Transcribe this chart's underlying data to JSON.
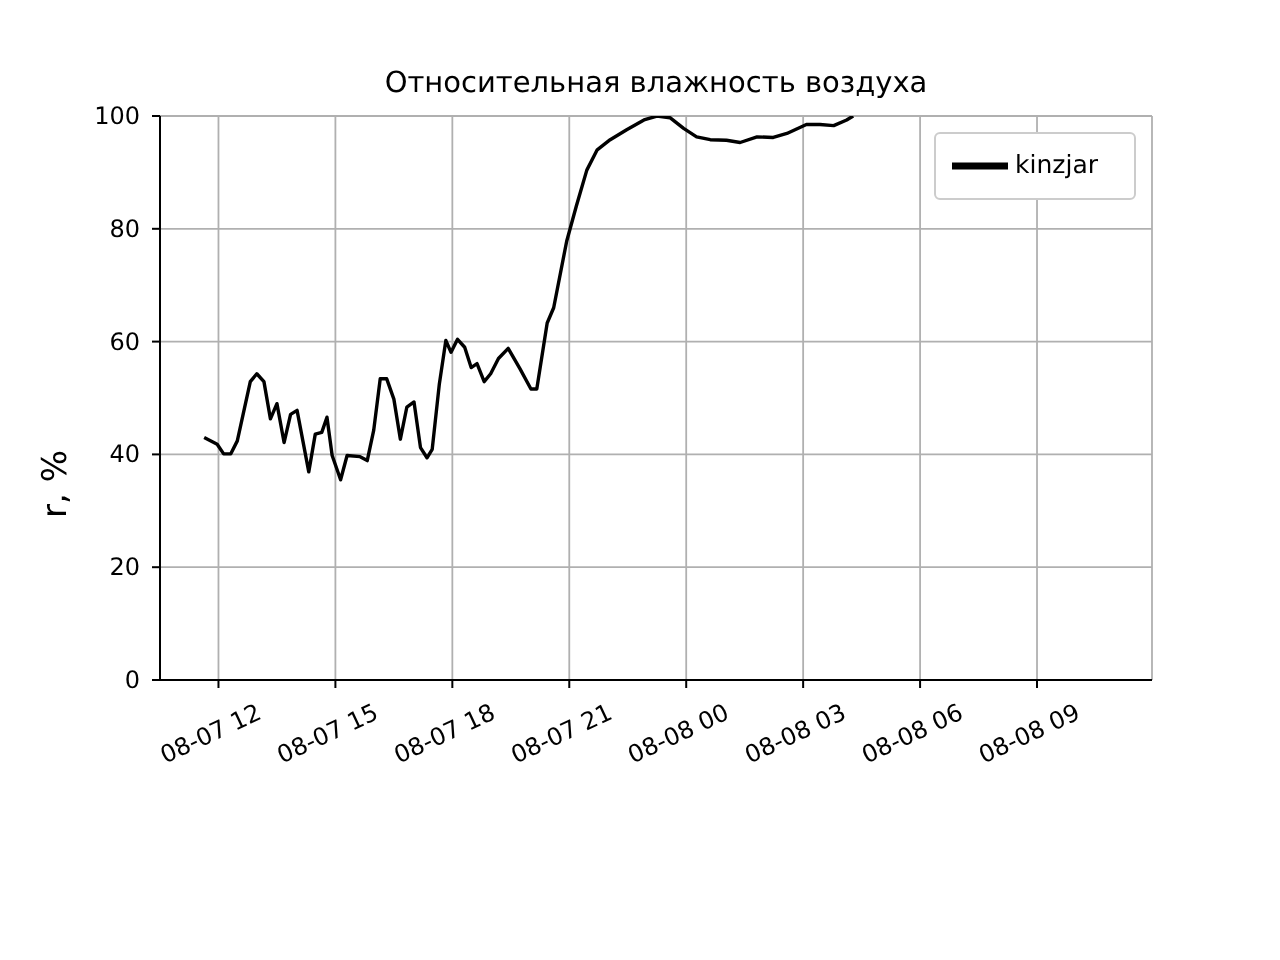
{
  "chart_data": {
    "type": "line",
    "title": "Относительная влажность воздуха",
    "ylabel": "r, %",
    "xlim": [
      "--08-07T10:30",
      "--08-08T11:57"
    ],
    "ylim": [
      0,
      100
    ],
    "xticks": [
      {
        "value": "--08-07T12:00",
        "label": "08-07 12"
      },
      {
        "value": "--08-07T15:00",
        "label": "08-07 15"
      },
      {
        "value": "--08-07T18:00",
        "label": "08-07 18"
      },
      {
        "value": "--08-07T21:00",
        "label": "08-07 21"
      },
      {
        "value": "--08-08T00:00",
        "label": "08-08 00"
      },
      {
        "value": "--08-08T03:00",
        "label": "08-08 03"
      },
      {
        "value": "--08-08T06:00",
        "label": "08-08 06"
      },
      {
        "value": "--08-08T09:00",
        "label": "08-08 09"
      }
    ],
    "yticks": [
      0,
      20,
      40,
      60,
      80,
      100
    ],
    "grid": true,
    "legend": "top right",
    "series": [
      {
        "name": "kinzjar",
        "color": "#000000",
        "x": [
          "--08-07T11:38",
          "--08-07T11:58",
          "--08-07T12:08",
          "--08-07T12:19",
          "--08-07T12:29",
          "--08-07T12:49",
          "--08-07T12:59",
          "--08-07T13:10",
          "--08-07T13:20",
          "--08-07T13:30",
          "--08-07T13:41",
          "--08-07T13:51",
          "--08-07T14:01",
          "--08-07T14:19",
          "--08-07T14:29",
          "--08-07T14:39",
          "--08-07T14:47",
          "--08-07T14:55",
          "--08-07T15:08",
          "--08-07T15:18",
          "--08-07T15:38",
          "--08-07T15:49",
          "--08-07T15:59",
          "--08-07T16:09",
          "--08-07T16:19",
          "--08-07T16:30",
          "--08-07T16:40",
          "--08-07T16:50",
          "--08-07T17:01",
          "--08-07T17:11",
          "--08-07T17:21",
          "--08-07T17:29",
          "--08-07T17:40",
          "--08-07T17:50",
          "--08-07T17:58",
          "--08-07T18:08",
          "--08-07T18:19",
          "--08-07T18:29",
          "--08-07T18:38",
          "--08-07T18:49",
          "--08-07T18:59",
          "--08-07T19:11",
          "--08-07T19:26",
          "--08-07T19:44",
          "--08-07T20:01",
          "--08-07T20:10",
          "--08-07T20:26",
          "--08-07T20:36",
          "--08-07T20:56",
          "--08-07T21:11",
          "--08-07T21:27",
          "--08-07T21:43",
          "--08-07T22:03",
          "--08-07T22:29",
          "--08-07T22:55",
          "--08-07T23:15",
          "--08-07T23:35",
          "--08-07T23:56",
          "--08-08T00:16",
          "--08-08T00:37",
          "--08-08T01:02",
          "--08-08T01:23",
          "--08-08T01:49",
          "--08-08T02:14",
          "--08-08T02:35",
          "--08-08T03:05",
          "--08-08T03:26",
          "--08-08T03:47",
          "--08-08T04:07",
          "--08-08T04:17"
        ],
        "values": [
          43.0,
          41.8,
          40.1,
          40.1,
          42.4,
          52.9,
          54.3,
          52.9,
          46.3,
          49.0,
          42.1,
          47.1,
          47.8,
          36.9,
          43.6,
          43.9,
          46.6,
          39.8,
          35.5,
          39.8,
          39.6,
          38.9,
          44.3,
          53.4,
          53.4,
          49.8,
          42.7,
          48.4,
          49.3,
          41.2,
          39.4,
          40.9,
          52.5,
          60.2,
          58.1,
          60.4,
          59.0,
          55.4,
          56.1,
          52.9,
          54.3,
          57.0,
          58.8,
          55.2,
          51.6,
          51.6,
          63.3,
          66.0,
          77.8,
          84.1,
          90.4,
          94.0,
          95.8,
          97.6,
          99.3,
          100,
          99.7,
          97.8,
          96.3,
          95.8,
          95.7,
          95.3,
          96.3,
          96.2,
          96.9,
          98.5,
          98.5,
          98.3,
          99.3,
          100
        ]
      }
    ]
  }
}
